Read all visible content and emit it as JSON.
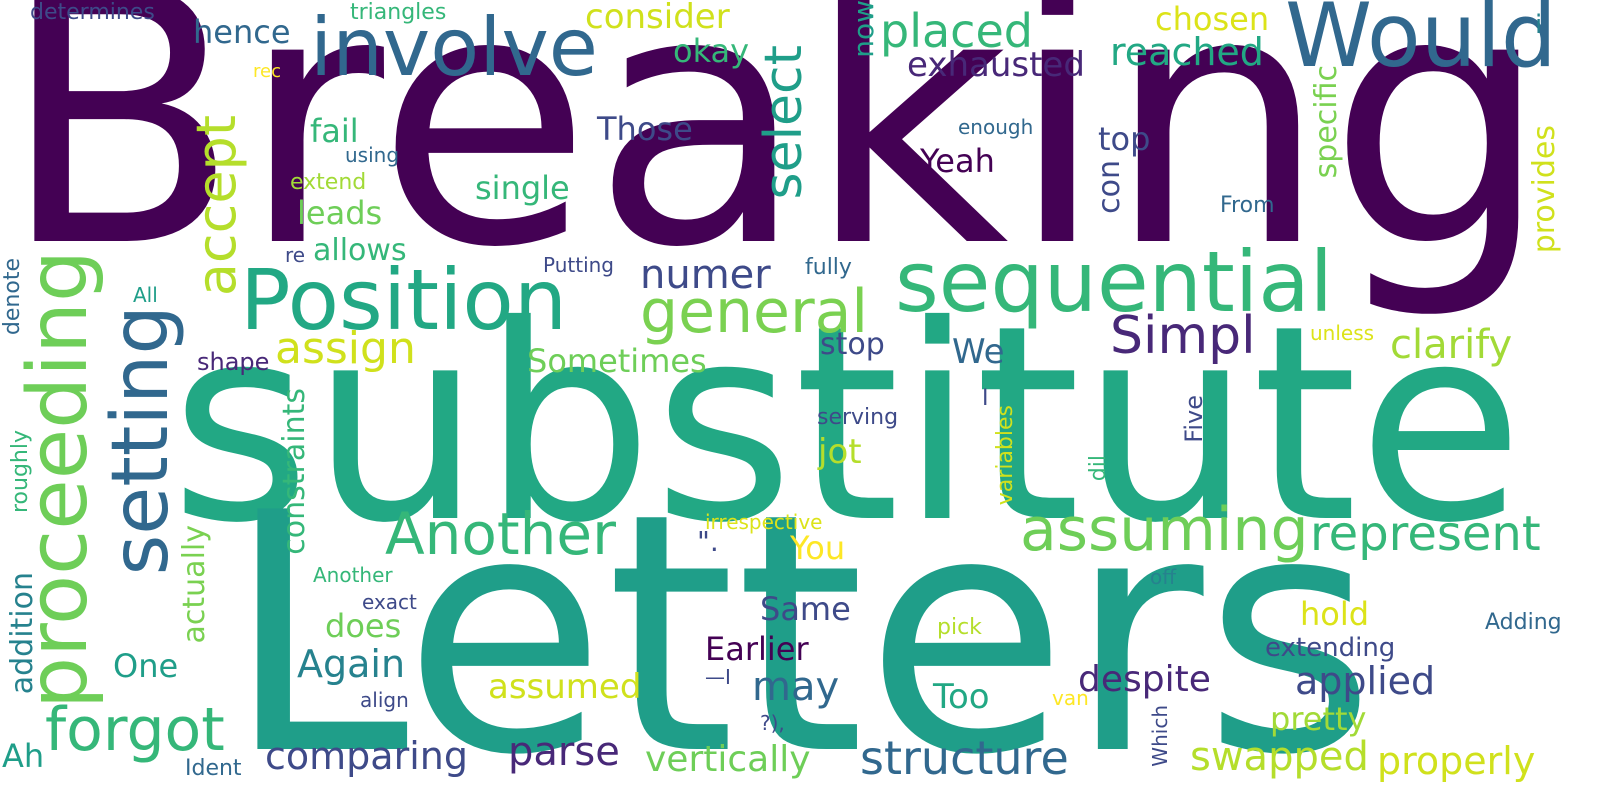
{
  "word_cloud": {
    "palette": {
      "c1": "#440154",
      "c2": "#482878",
      "c3": "#3e4a89",
      "c4": "#31688e",
      "c5": "#26828e",
      "c6": "#1f9e89",
      "c7": "#35b779",
      "c8": "#6ece58",
      "c9": "#b5de2b",
      "c10": "#fde725"
    },
    "words": [
      {
        "text": "Breaking",
        "color": "#440154"
      },
      {
        "text": "substitute",
        "color": "#22a884"
      },
      {
        "text": "Letters",
        "color": "#1f9e89"
      },
      {
        "text": "Would",
        "color": "#31688e"
      },
      {
        "text": "involve",
        "color": "#31688e"
      },
      {
        "text": "sequential",
        "color": "#35b779"
      },
      {
        "text": "Position",
        "color": "#22a884"
      },
      {
        "text": "proceeding",
        "color": "#6ece58"
      },
      {
        "text": "setting",
        "color": "#31688e"
      },
      {
        "text": "forgot",
        "color": "#35b779"
      },
      {
        "text": "general",
        "color": "#7ad151"
      },
      {
        "text": "Another",
        "color": "#35b779"
      },
      {
        "text": "assuming",
        "color": "#6ece58"
      },
      {
        "text": "represent",
        "color": "#35b779"
      },
      {
        "text": "Simpl",
        "color": "#482878"
      },
      {
        "text": "structure",
        "color": "#31688e"
      },
      {
        "text": "accept",
        "color": "#b5de2b"
      },
      {
        "text": "select",
        "color": "#1f9e89"
      },
      {
        "text": "placed",
        "color": "#35b779"
      },
      {
        "text": "reached",
        "color": "#22a884"
      },
      {
        "text": "exhausted",
        "color": "#482878"
      },
      {
        "text": "consider",
        "color": "#d0e11c"
      },
      {
        "text": "hence",
        "color": "#31688e"
      },
      {
        "text": "okay",
        "color": "#35b779"
      },
      {
        "text": "chosen",
        "color": "#dce319"
      },
      {
        "text": "numer",
        "color": "#3e4a89"
      },
      {
        "text": "assign",
        "color": "#d0e11c"
      },
      {
        "text": "clarify",
        "color": "#a2da37"
      },
      {
        "text": "Sometimes",
        "color": "#6ece58"
      },
      {
        "text": "comparing",
        "color": "#3e4a89"
      },
      {
        "text": "parse",
        "color": "#482878"
      },
      {
        "text": "vertically",
        "color": "#6ece58"
      },
      {
        "text": "swapped",
        "color": "#b5de2b"
      },
      {
        "text": "properly",
        "color": "#d0e11c"
      },
      {
        "text": "applied",
        "color": "#3e4a89"
      },
      {
        "text": "despite",
        "color": "#482878"
      },
      {
        "text": "assumed",
        "color": "#d0e11c"
      },
      {
        "text": "Again",
        "color": "#26828e"
      },
      {
        "text": "may",
        "color": "#31688e"
      },
      {
        "text": "Earlier",
        "color": "#440154"
      },
      {
        "text": "Same",
        "color": "#3e4a89"
      },
      {
        "text": "Too",
        "color": "#22a884"
      },
      {
        "text": "pretty",
        "color": "#a2da37"
      },
      {
        "text": "hold",
        "color": "#dce319"
      },
      {
        "text": "One",
        "color": "#1f9e89"
      },
      {
        "text": "does",
        "color": "#6ece58"
      },
      {
        "text": "You",
        "color": "#fde725"
      },
      {
        "text": "jot",
        "color": "#b5de2b"
      },
      {
        "text": "We",
        "color": "#31688e"
      },
      {
        "text": "stop",
        "color": "#3e4a89"
      },
      {
        "text": "Those",
        "color": "#3e4a89"
      },
      {
        "text": "top",
        "color": "#3e4a89"
      },
      {
        "text": "Yeah",
        "color": "#440154"
      },
      {
        "text": "fail",
        "color": "#35b779"
      },
      {
        "text": "single",
        "color": "#35b779"
      },
      {
        "text": "leads",
        "color": "#6ece58"
      },
      {
        "text": "allows",
        "color": "#35b779"
      },
      {
        "text": "Ah",
        "color": "#1f9e89"
      },
      {
        "text": "addition",
        "color": "#26828e"
      },
      {
        "text": "actually",
        "color": "#7ad151"
      },
      {
        "text": "constraints",
        "color": "#35b779"
      },
      {
        "text": "specific",
        "color": "#7ad151"
      },
      {
        "text": "provides",
        "color": "#d0e11c"
      },
      {
        "text": "con",
        "color": "#3e4a89"
      },
      {
        "text": "now",
        "color": "#1f9e89"
      },
      {
        "text": "determines",
        "color": "#3e4a89"
      },
      {
        "text": "triangles",
        "color": "#35b779"
      },
      {
        "text": "using",
        "color": "#31688e"
      },
      {
        "text": "extend",
        "color": "#a2da37"
      },
      {
        "text": "rec",
        "color": "#fde725"
      },
      {
        "text": "re",
        "color": "#3e4a89"
      },
      {
        "text": "Putting",
        "color": "#3e4a89"
      },
      {
        "text": "fully",
        "color": "#31688e"
      },
      {
        "text": "enough",
        "color": "#31688e"
      },
      {
        "text": "From",
        "color": "#31688e"
      },
      {
        "text": "i",
        "color": "#26828e"
      },
      {
        "text": "unless",
        "color": "#dce319"
      },
      {
        "text": "shape",
        "color": "#482878"
      },
      {
        "text": "serving",
        "color": "#3e4a89"
      },
      {
        "text": "I",
        "color": "#3e4a89"
      },
      {
        "text": "Five",
        "color": "#3e4a89"
      },
      {
        "text": "variables",
        "color": "#d0e11c"
      },
      {
        "text": "dil",
        "color": "#35b779"
      },
      {
        "text": "irrespective",
        "color": "#dce319"
      },
      {
        "text": "\".",
        "color": "#3e4a89"
      },
      {
        "text": "Another",
        "color": "#35b779"
      },
      {
        "text": "exact",
        "color": "#3e4a89"
      },
      {
        "text": "off",
        "color": "#26828e"
      },
      {
        "text": "pick",
        "color": "#b5de2b"
      },
      {
        "text": "extending",
        "color": "#3e4a89"
      },
      {
        "text": "Adding",
        "color": "#31688e"
      },
      {
        "text": "—I",
        "color": "#3e4a89"
      },
      {
        "text": "align",
        "color": "#3e4a89"
      },
      {
        "text": "?),",
        "color": "#3e4a89"
      },
      {
        "text": "van",
        "color": "#fde725"
      },
      {
        "text": "Which",
        "color": "#3e4a89"
      },
      {
        "text": "Ident",
        "color": "#31688e"
      },
      {
        "text": "All",
        "color": "#1f9e89"
      },
      {
        "text": "denote",
        "color": "#31688e"
      },
      {
        "text": "roughly",
        "color": "#35b779"
      }
    ]
  }
}
